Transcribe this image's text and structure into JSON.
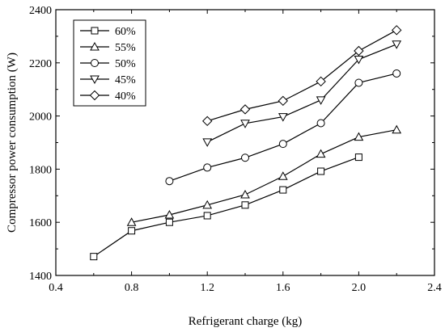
{
  "chart_data": {
    "type": "line",
    "title": "",
    "xlabel": "Refrigerant charge (kg)",
    "ylabel": "Compressor power consumption (W)",
    "xlim": [
      0.4,
      2.4
    ],
    "ylim": [
      1400,
      2400
    ],
    "x_ticks": [
      0.4,
      0.8,
      1.2,
      1.6,
      2.0,
      2.4
    ],
    "x_tick_labels": [
      "0.4",
      "0.8",
      "1.2",
      "1.6",
      "2.0",
      "2.4"
    ],
    "y_ticks": [
      1400,
      1600,
      1800,
      2000,
      2200,
      2400
    ],
    "y_tick_labels": [
      "1400",
      "1600",
      "1800",
      "2000",
      "2200",
      "2400"
    ],
    "grid": false,
    "legend_position": "top-left",
    "series": [
      {
        "name": "60%",
        "marker": "square",
        "x": [
          0.6,
          0.8,
          1.0,
          1.2,
          1.4,
          1.6,
          1.8,
          2.0
        ],
        "values": [
          1471,
          1568,
          1600,
          1625,
          1665,
          1722,
          1792,
          1845
        ]
      },
      {
        "name": "55%",
        "marker": "triangle-up",
        "x": [
          0.8,
          1.0,
          1.2,
          1.4,
          1.6,
          1.8,
          2.0,
          2.2
        ],
        "values": [
          1600,
          1628,
          1665,
          1704,
          1773,
          1857,
          1921,
          1948
        ]
      },
      {
        "name": "50%",
        "marker": "circle",
        "x": [
          1.0,
          1.2,
          1.4,
          1.6,
          1.8,
          2.0,
          2.2
        ],
        "values": [
          1755,
          1806,
          1843,
          1895,
          1973,
          2125,
          2160
        ]
      },
      {
        "name": "45%",
        "marker": "triangle-down",
        "x": [
          1.2,
          1.4,
          1.6,
          1.8,
          2.0,
          2.2
        ],
        "values": [
          1902,
          1972,
          1997,
          2060,
          2213,
          2270
        ]
      },
      {
        "name": "40%",
        "marker": "diamond",
        "x": [
          1.2,
          1.4,
          1.6,
          1.8,
          2.0,
          2.2
        ],
        "values": [
          1981,
          2025,
          2057,
          2130,
          2245,
          2323
        ]
      }
    ]
  }
}
